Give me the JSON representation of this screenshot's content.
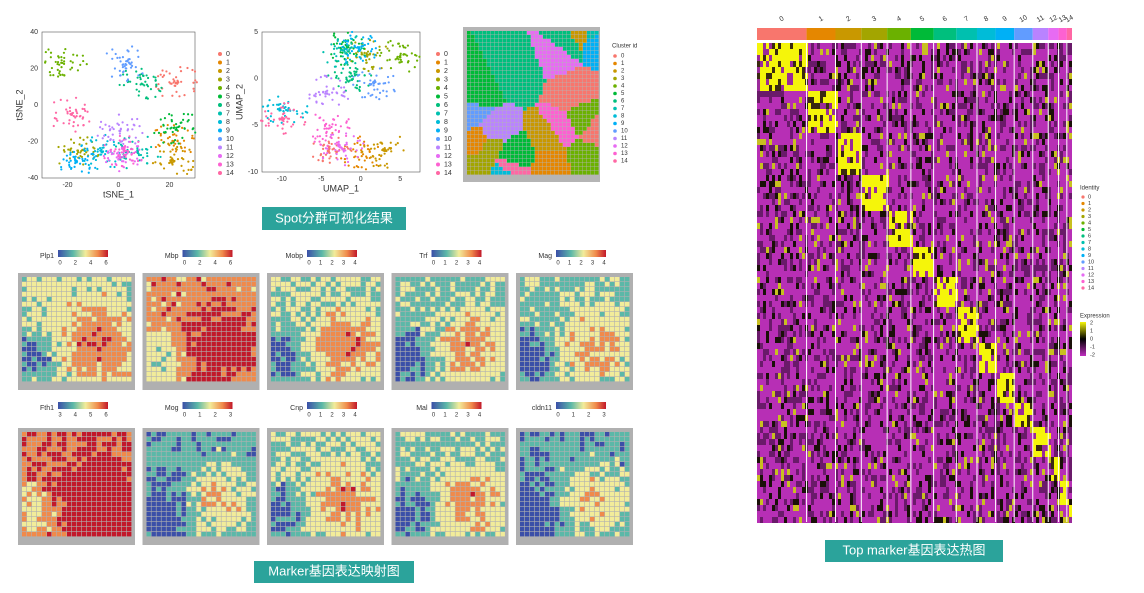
{
  "clusters": [
    "0",
    "1",
    "2",
    "3",
    "4",
    "5",
    "6",
    "7",
    "8",
    "9",
    "10",
    "11",
    "12",
    "13",
    "14"
  ],
  "cluster_colors": [
    "#f8766d",
    "#e58700",
    "#c99800",
    "#a3a500",
    "#6bb100",
    "#00ba38",
    "#00bf7d",
    "#00c0af",
    "#00bcd8",
    "#00b0f6",
    "#619cff",
    "#b983ff",
    "#e76bf3",
    "#fd61d1",
    "#ff67a4"
  ],
  "tsne": {
    "xlabel": "tSNE_1",
    "ylabel": "tSNE_2",
    "xticks": [
      "-20",
      "0",
      "20"
    ],
    "yticks": [
      "40",
      "20",
      "0",
      "-20",
      "-40"
    ]
  },
  "umap": {
    "xlabel": "UMAP_1",
    "ylabel": "UMAP_2",
    "xticks": [
      "-10",
      "-5",
      "0",
      "5"
    ],
    "yticks": [
      "5",
      "0",
      "-5",
      "-10"
    ]
  },
  "spatial": {
    "legend_title": "Cluster id"
  },
  "captions": {
    "clusters": "Spot分群可视化结果",
    "markers": "Marker基因表达映射图",
    "heatmap": "Top marker基因表达热图"
  },
  "genes": [
    {
      "name": "Plp1",
      "ticks": [
        "0",
        "2",
        "4",
        "6"
      ]
    },
    {
      "name": "Mbp",
      "ticks": [
        "0",
        "2",
        "4",
        "6"
      ]
    },
    {
      "name": "Mobp",
      "ticks": [
        "0",
        "1",
        "2",
        "3",
        "4"
      ]
    },
    {
      "name": "Trf",
      "ticks": [
        "0",
        "1",
        "2",
        "3",
        "4"
      ]
    },
    {
      "name": "Mag",
      "ticks": [
        "0",
        "1",
        "2",
        "3",
        "4"
      ]
    },
    {
      "name": "Fth1",
      "ticks": [
        "3",
        "4",
        "5",
        "6"
      ]
    },
    {
      "name": "Mog",
      "ticks": [
        "0",
        "1",
        "2",
        "3"
      ]
    },
    {
      "name": "Cnp",
      "ticks": [
        "0",
        "1",
        "2",
        "3",
        "4"
      ]
    },
    {
      "name": "Mal",
      "ticks": [
        "0",
        "1",
        "2",
        "3",
        "4"
      ]
    },
    {
      "name": "cldn11",
      "ticks": [
        "0",
        "1",
        "2",
        "3"
      ]
    }
  ],
  "heatmap": {
    "identity_title": "Identity",
    "expression_title": "Expression",
    "expression_ticks": [
      "2",
      "1",
      "0",
      "-1",
      "-2"
    ]
  }
}
